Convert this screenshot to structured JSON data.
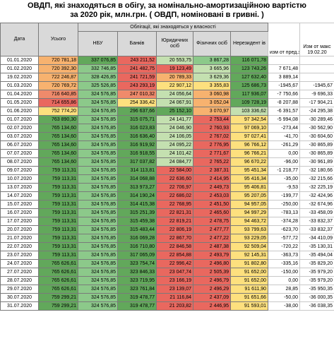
{
  "title_line1": "ОВДП, які знаходяться в обігу, за номінально-амортизаційною вартістю",
  "title_line2": "за 2020 рік, млн.грн. ( ОВДП, номіновані в гривні. )",
  "headers": {
    "date": "Дата",
    "total": "Усього",
    "group": "Облігації, які знаходяться у власності",
    "nbu": "НБУ",
    "banks": "Банків",
    "legal": "Юридичних осіб",
    "individuals": "Фізичних осіб",
    "nonresidents": "Нерезидент ів",
    "change_prev": "изм от пред.знач",
    "change_max": "Изм от макс 19.02.20"
  },
  "colors": {
    "dark_green": "#62a85b",
    "green": "#8cc98a",
    "light_green": "#c4e0b0",
    "yellow_green": "#e6e48a",
    "yellow": "#fde07e",
    "orange": "#f7b26f",
    "red_orange": "#ef8a6b",
    "red": "#e9685f"
  },
  "rows": [
    {
      "date": "01.01.2020",
      "total": "720 781,18",
      "nbu": "337 076,85",
      "banks": "243 211,52",
      "legal": "20 553,75",
      "ind": "3 867,28",
      "nonres": "116 071,78",
      "chg": "",
      "chgmax": "",
      "c": [
        "orange",
        "dark_green",
        "red",
        "light_green",
        "green",
        "dark_green"
      ]
    },
    {
      "date": "01.02.2020",
      "total": "720 392,30",
      "nbu": "332 746,85",
      "banks": "241 482,75",
      "legal": "19 123,49",
      "ind": "3 665,96",
      "nonres": "123 743,26",
      "chg": "7 671,48",
      "chgmax": "",
      "c": [
        "orange",
        "green",
        "red",
        "red",
        "light_green",
        "dark_green"
      ]
    },
    {
      "date": "19.02.2020",
      "total": "722 246,87",
      "nbu": "328 426,85",
      "banks": "241 721,59",
      "legal": "20 789,33",
      "ind": "3 629,36",
      "nonres": "127 632,40",
      "chg": "3 889,14",
      "chgmax": "",
      "c": [
        "orange",
        "green",
        "red",
        "orange",
        "light_green",
        "dark_green"
      ]
    },
    {
      "date": "01.03.2020",
      "total": "720 769,72",
      "nbu": "325 526,85",
      "banks": "243 293,19",
      "legal": "22 907,12",
      "ind": "3 355,83",
      "nonres": "125 686,73",
      "chg": "-1945,67",
      "chgmax": "-1945,67",
      "c": [
        "orange",
        "green",
        "red",
        "yellow",
        "yellow",
        "dark_green"
      ]
    },
    {
      "date": "01.04.2020",
      "total": "716 640,85",
      "nbu": "324 576,85",
      "banks": "247 010,32",
      "legal": "24 056,64",
      "ind": "3 060,98",
      "nonres": "117 936,07",
      "chg": "-7 750,66",
      "chgmax": "-9 696,33",
      "c": [
        "red_orange",
        "green",
        "red_orange",
        "light_green",
        "orange",
        "dark_green"
      ]
    },
    {
      "date": "01.05.2020",
      "total": "714 655,86",
      "nbu": "324 576,85",
      "banks": "254 336,42",
      "legal": "24 067,91",
      "ind": "3 052,04",
      "nonres": "109 728,19",
      "chg": "-8 207,88",
      "chgmax": "-17 904,21",
      "c": [
        "red",
        "green",
        "yellow",
        "light_green",
        "orange",
        "dark_green"
      ]
    },
    {
      "date": "01.06.2020",
      "total": "752 774,20",
      "nbu": "324 576,85",
      "banks": "296 637,66",
      "legal": "25 152,10",
      "ind": "3 070,97",
      "nonres": "103 336,62",
      "chg": "-6 391,57",
      "chgmax": "-24 295,38",
      "c": [
        "yellow",
        "green",
        "dark_green",
        "dark_green",
        "orange",
        "light_green"
      ]
    },
    {
      "date": "01.07.2020",
      "total": "763 890,30",
      "nbu": "324 576,85",
      "banks": "315 075,71",
      "legal": "24 141,77",
      "ind": "2 753,44",
      "nonres": "97 342,54",
      "chg": "-5 994,08",
      "chgmax": "-30 289,46",
      "c": [
        "dark_green",
        "green",
        "dark_green",
        "light_green",
        "red",
        "yellow"
      ]
    },
    {
      "date": "02.07.2020",
      "total": "765 134,60",
      "nbu": "324 576,85",
      "banks": "316 023,83",
      "legal": "24 046,90",
      "ind": "2 760,93",
      "nonres": "97 069,10",
      "chg": "-273,44",
      "chgmax": "-30 562,90",
      "c": [
        "dark_green",
        "green",
        "dark_green",
        "light_green",
        "red",
        "yellow"
      ]
    },
    {
      "date": "03.07.2020",
      "total": "765 134,60",
      "nbu": "324 576,85",
      "banks": "316 636,40",
      "legal": "24 106,05",
      "ind": "2 767,02",
      "nonres": "97 027,41",
      "chg": "-41,70",
      "chgmax": "-30 604,60",
      "c": [
        "dark_green",
        "green",
        "dark_green",
        "light_green",
        "red",
        "yellow"
      ]
    },
    {
      "date": "06.07.2020",
      "total": "765 134,60",
      "nbu": "324 576,85",
      "banks": "316 919,92",
      "legal": "24 095,22",
      "ind": "2 776,95",
      "nonres": "96 766,12",
      "chg": "-261,29",
      "chgmax": "-30 865,89",
      "c": [
        "dark_green",
        "green",
        "dark_green",
        "light_green",
        "red",
        "yellow"
      ]
    },
    {
      "date": "07.07.2020",
      "total": "765 134,60",
      "nbu": "324 576,85",
      "banks": "316 918,55",
      "legal": "24 101,42",
      "ind": "2 771,67",
      "nonres": "96 766,21",
      "chg": "0,00",
      "chgmax": "-30 865,89",
      "c": [
        "dark_green",
        "green",
        "dark_green",
        "light_green",
        "red",
        "yellow"
      ]
    },
    {
      "date": "08.07.2020",
      "total": "765 134,60",
      "nbu": "324 576,85",
      "banks": "317 037,82",
      "legal": "24 084,77",
      "ind": "2 765,22",
      "nonres": "96 670,22",
      "chg": "-96,00",
      "chgmax": "-30 961,89",
      "c": [
        "dark_green",
        "green",
        "dark_green",
        "light_green",
        "red",
        "yellow"
      ]
    },
    {
      "date": "09.07.2020",
      "total": "759 113,31",
      "nbu": "324 576,85",
      "banks": "314 113,81",
      "legal": "22 584,00",
      "ind": "2 387,31",
      "nonres": "95 451,34",
      "chg": "-1 218,77",
      "chgmax": "-32 180,66",
      "c": [
        "dark_green",
        "green",
        "dark_green",
        "red",
        "red",
        "yellow"
      ]
    },
    {
      "date": "10.07.2020",
      "total": "759 113,31",
      "nbu": "324 576,85",
      "banks": "314 068,88",
      "legal": "22 636,60",
      "ind": "2 414,95",
      "nonres": "95 416,34",
      "chg": "-35,00",
      "chgmax": "-32 215,66",
      "c": [
        "dark_green",
        "green",
        "dark_green",
        "red",
        "red",
        "yellow"
      ]
    },
    {
      "date": "13.07.2020",
      "total": "759 113,31",
      "nbu": "324 576,85",
      "banks": "313 973,27",
      "legal": "22 706,97",
      "ind": "2 449,73",
      "nonres": "95 406,81",
      "chg": "-9,53",
      "chgmax": "-32 225,19",
      "c": [
        "dark_green",
        "green",
        "dark_green",
        "red",
        "red",
        "yellow"
      ]
    },
    {
      "date": "14.07.2020",
      "total": "759 113,31",
      "nbu": "324 576,85",
      "banks": "314 190,24",
      "legal": "22 686,02",
      "ind": "2 453,03",
      "nonres": "95 207,05",
      "chg": "-199,77",
      "chgmax": "-32 424,96",
      "c": [
        "dark_green",
        "green",
        "dark_green",
        "red",
        "red",
        "yellow"
      ]
    },
    {
      "date": "15.07.2020",
      "total": "759 113,31",
      "nbu": "324 576,85",
      "banks": "314 415,38",
      "legal": "22 768,95",
      "ind": "2 451,50",
      "nonres": "94 957,05",
      "chg": "-250,00",
      "chgmax": "-32 674,96",
      "c": [
        "dark_green",
        "green",
        "dark_green",
        "red",
        "red",
        "yellow"
      ]
    },
    {
      "date": "16.07.2020",
      "total": "759 113,31",
      "nbu": "324 576,85",
      "banks": "315 251,39",
      "legal": "22 821,31",
      "ind": "2 465,60",
      "nonres": "94 997,29",
      "chg": "-783,13",
      "chgmax": "-33 458,09",
      "c": [
        "dark_green",
        "green",
        "dark_green",
        "red",
        "red",
        "yellow"
      ]
    },
    {
      "date": "17.07.2020",
      "total": "759 113,31",
      "nbu": "324 576,85",
      "banks": "315 459,38",
      "legal": "22 819,21",
      "ind": "2 478,75",
      "nonres": "94 463,72",
      "chg": "-374,28",
      "chgmax": "-33 832,37",
      "c": [
        "dark_green",
        "green",
        "dark_green",
        "red",
        "red",
        "yellow"
      ]
    },
    {
      "date": "20.07.2020",
      "total": "759 113,31",
      "nbu": "324 576,85",
      "banks": "315 483,44",
      "legal": "22 806,19",
      "ind": "2 477,77",
      "nonres": "93 799,63",
      "chg": "-623,70",
      "chgmax": "-33 832,37",
      "c": [
        "dark_green",
        "green",
        "dark_green",
        "red",
        "red",
        "yellow"
      ]
    },
    {
      "date": "21.07.2020",
      "total": "759 113,31",
      "nbu": "324 576,85",
      "banks": "316 069,28",
      "legal": "22 867,70",
      "ind": "2 477,22",
      "nonres": "93 229,05",
      "chg": "-577,72",
      "chgmax": "-34 410,09",
      "c": [
        "dark_green",
        "green",
        "dark_green",
        "red",
        "red",
        "yellow"
      ]
    },
    {
      "date": "22.07.2020",
      "total": "759 113,31",
      "nbu": "324 576,85",
      "banks": "316 710,80",
      "legal": "22 846,58",
      "ind": "2 487,38",
      "nonres": "92 509,04",
      "chg": "-720,22",
      "chgmax": "-35 130,31",
      "c": [
        "dark_green",
        "green",
        "dark_green",
        "red",
        "red",
        "yellow"
      ]
    },
    {
      "date": "23.07.2020",
      "total": "759 113,31",
      "nbu": "324 576,85",
      "banks": "317 065,09",
      "legal": "22 854,88",
      "ind": "2 493,79",
      "nonres": "92 145,31",
      "chg": "-363,73",
      "chgmax": "-35 494,04",
      "c": [
        "dark_green",
        "green",
        "dark_green",
        "red",
        "red",
        "yellow"
      ]
    },
    {
      "date": "24.07.2020",
      "total": "765 626,61",
      "nbu": "324 576,85",
      "banks": "323 754,74",
      "legal": "22 996,42",
      "ind": "2 496,80",
      "nonres": "91 802,80",
      "chg": "-335,16",
      "chgmax": "-35 829,20",
      "c": [
        "dark_green",
        "green",
        "dark_green",
        "red",
        "red",
        "yellow"
      ]
    },
    {
      "date": "27.07.2020",
      "total": "765 626,61",
      "nbu": "324 576,85",
      "banks": "323 846,33",
      "legal": "23 047,74",
      "ind": "2 505,39",
      "nonres": "91 652,00",
      "chg": "-150,00",
      "chgmax": "-35 979,20",
      "c": [
        "dark_green",
        "green",
        "dark_green",
        "red",
        "red",
        "yellow"
      ]
    },
    {
      "date": "28.07.2020",
      "total": "765 626,61",
      "nbu": "324 576,85",
      "banks": "323 719,95",
      "legal": "23 166,19",
      "ind": "2 496,79",
      "nonres": "91 652,00",
      "chg": "0,00",
      "chgmax": "-35 979,20",
      "c": [
        "dark_green",
        "green",
        "dark_green",
        "red",
        "red",
        "yellow"
      ]
    },
    {
      "date": "29.07.2020",
      "total": "765 626,61",
      "nbu": "324 576,85",
      "banks": "323 761,84",
      "legal": "23 139,07",
      "ind": "2 496,29",
      "nonres": "91 611,90",
      "chg": "28,85",
      "chgmax": "-35 950,35",
      "c": [
        "dark_green",
        "green",
        "dark_green",
        "red",
        "red",
        "yellow"
      ]
    },
    {
      "date": "30.07.2020",
      "total": "759 299,21",
      "nbu": "324 576,85",
      "banks": "319 478,77",
      "legal": "21 116,84",
      "ind": "2 437,09",
      "nonres": "91 651,66",
      "chg": "-50,00",
      "chgmax": "-36 000,35",
      "c": [
        "dark_green",
        "green",
        "dark_green",
        "red",
        "red",
        "yellow"
      ]
    },
    {
      "date": "31.07.2020",
      "total": "759 299,21",
      "nbu": "324 576,85",
      "banks": "319 478,77",
      "legal": "21 203,82",
      "ind": "2 446,95",
      "nonres": "91 593,01",
      "chg": "-38,00",
      "chgmax": "-36 038,35",
      "c": [
        "dark_green",
        "green",
        "dark_green",
        "red",
        "red",
        "yellow"
      ]
    }
  ]
}
